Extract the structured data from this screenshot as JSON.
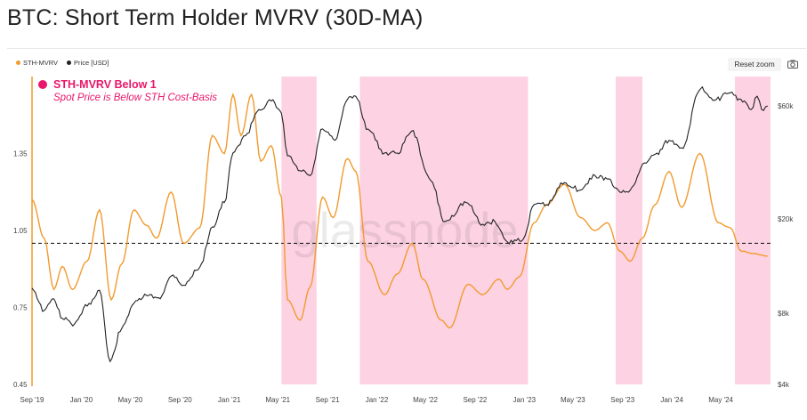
{
  "title": "BTC: Short Term Holder MVRV (30D-MA)",
  "toolbar": {
    "reset_zoom": "Reset zoom",
    "camera_icon": "camera-icon"
  },
  "colors": {
    "mvrv": "#f29a2e",
    "price": "#222222",
    "band": "#fdd3e3",
    "annotation": "#e8176b",
    "axis": "#f29a2e"
  },
  "watermark": "glassnode",
  "annotation": {
    "title": "STH-MVRV Below 1",
    "subtitle": "Spot Price is Below STH Cost-Basis"
  },
  "chart_data": {
    "type": "line",
    "title": "BTC: Short Term Holder MVRV (30D-MA)",
    "x_range": [
      "2019-09-01",
      "2024-09-01"
    ],
    "x_ticks": [
      "Sep '19",
      "Jan '20",
      "May '20",
      "Sep '20",
      "Jan '21",
      "May '21",
      "Sep '21",
      "Jan '22",
      "May '22",
      "Sep '22",
      "Jan '23",
      "May '23",
      "Sep '23",
      "Jan '24",
      "May '24"
    ],
    "y_left": {
      "scale": "linear",
      "range": [
        0.45,
        1.65
      ],
      "ticks": [
        "0.45",
        "0.75",
        "1.05",
        "1.35"
      ]
    },
    "y_right": {
      "scale": "log",
      "range": [
        4000,
        80000
      ],
      "ticks": [
        "$4k",
        "$8k",
        "$20k",
        "$60k"
      ]
    },
    "reference_line": {
      "y": 1.0,
      "style": "dashed",
      "axis": "left"
    },
    "highlight_ranges": [
      [
        "2021-05-10",
        "2021-08-05"
      ],
      [
        "2021-11-20",
        "2023-01-10"
      ],
      [
        "2023-08-15",
        "2023-10-20"
      ],
      [
        "2024-06-05",
        "2024-09-01"
      ]
    ],
    "series": [
      {
        "name": "STH-MVRV",
        "axis": "left",
        "points": [
          [
            "2019-09-01",
            1.17
          ],
          [
            "2019-10-01",
            1.02
          ],
          [
            "2019-10-25",
            0.82
          ],
          [
            "2019-11-15",
            0.91
          ],
          [
            "2019-12-10",
            0.82
          ],
          [
            "2020-01-15",
            0.93
          ],
          [
            "2020-02-15",
            1.13
          ],
          [
            "2020-03-15",
            0.78
          ],
          [
            "2020-04-10",
            0.92
          ],
          [
            "2020-05-10",
            1.13
          ],
          [
            "2020-06-10",
            1.07
          ],
          [
            "2020-07-05",
            1.02
          ],
          [
            "2020-08-10",
            1.2
          ],
          [
            "2020-09-10",
            1.0
          ],
          [
            "2020-10-20",
            1.06
          ],
          [
            "2020-11-20",
            1.42
          ],
          [
            "2020-12-20",
            1.35
          ],
          [
            "2021-01-10",
            1.58
          ],
          [
            "2021-01-30",
            1.42
          ],
          [
            "2021-02-25",
            1.58
          ],
          [
            "2021-03-20",
            1.32
          ],
          [
            "2021-04-15",
            1.38
          ],
          [
            "2021-05-10",
            1.18
          ],
          [
            "2021-05-25",
            0.78
          ],
          [
            "2021-06-25",
            0.7
          ],
          [
            "2021-07-20",
            0.83
          ],
          [
            "2021-08-20",
            1.18
          ],
          [
            "2021-09-15",
            1.1
          ],
          [
            "2021-10-20",
            1.33
          ],
          [
            "2021-11-10",
            1.28
          ],
          [
            "2021-12-10",
            0.93
          ],
          [
            "2022-01-20",
            0.8
          ],
          [
            "2022-02-20",
            0.88
          ],
          [
            "2022-03-30",
            1.0
          ],
          [
            "2022-04-25",
            0.86
          ],
          [
            "2022-06-10",
            0.7
          ],
          [
            "2022-06-30",
            0.67
          ],
          [
            "2022-08-15",
            0.84
          ],
          [
            "2022-09-20",
            0.8
          ],
          [
            "2022-10-30",
            0.86
          ],
          [
            "2022-11-20",
            0.82
          ],
          [
            "2022-12-20",
            0.87
          ],
          [
            "2023-01-25",
            1.08
          ],
          [
            "2023-02-25",
            1.15
          ],
          [
            "2023-04-10",
            1.23
          ],
          [
            "2023-05-20",
            1.1
          ],
          [
            "2023-06-25",
            1.05
          ],
          [
            "2023-07-25",
            1.08
          ],
          [
            "2023-08-25",
            0.97
          ],
          [
            "2023-09-20",
            0.93
          ],
          [
            "2023-10-20",
            1.02
          ],
          [
            "2023-11-20",
            1.15
          ],
          [
            "2023-12-25",
            1.28
          ],
          [
            "2024-01-25",
            1.14
          ],
          [
            "2024-03-10",
            1.35
          ],
          [
            "2024-04-25",
            1.08
          ],
          [
            "2024-05-25",
            1.06
          ],
          [
            "2024-06-20",
            0.97
          ],
          [
            "2024-07-20",
            0.96
          ],
          [
            "2024-08-25",
            0.95
          ]
        ]
      },
      {
        "name": "Price [USD]",
        "axis": "right",
        "points": [
          [
            "2019-09-01",
            10200
          ],
          [
            "2019-10-01",
            8200
          ],
          [
            "2019-10-25",
            9200
          ],
          [
            "2019-11-15",
            7600
          ],
          [
            "2019-12-15",
            7200
          ],
          [
            "2020-01-20",
            8800
          ],
          [
            "2020-02-15",
            10000
          ],
          [
            "2020-03-12",
            5000
          ],
          [
            "2020-04-10",
            6900
          ],
          [
            "2020-05-10",
            8800
          ],
          [
            "2020-06-10",
            9500
          ],
          [
            "2020-07-10",
            9300
          ],
          [
            "2020-08-15",
            11600
          ],
          [
            "2020-09-10",
            10500
          ],
          [
            "2020-10-20",
            12500
          ],
          [
            "2020-11-20",
            18500
          ],
          [
            "2020-12-20",
            23500
          ],
          [
            "2021-01-10",
            38000
          ],
          [
            "2021-02-10",
            45000
          ],
          [
            "2021-03-15",
            58000
          ],
          [
            "2021-04-15",
            63000
          ],
          [
            "2021-05-10",
            56000
          ],
          [
            "2021-05-25",
            37000
          ],
          [
            "2021-06-25",
            32000
          ],
          [
            "2021-07-20",
            30500
          ],
          [
            "2021-08-20",
            48000
          ],
          [
            "2021-09-20",
            43000
          ],
          [
            "2021-10-20",
            64000
          ],
          [
            "2021-11-10",
            66000
          ],
          [
            "2021-12-10",
            48000
          ],
          [
            "2022-01-20",
            38000
          ],
          [
            "2022-02-20",
            38000
          ],
          [
            "2022-03-28",
            47000
          ],
          [
            "2022-05-15",
            29000
          ],
          [
            "2022-06-18",
            19500
          ],
          [
            "2022-08-10",
            23500
          ],
          [
            "2022-09-20",
            19000
          ],
          [
            "2022-10-20",
            19500
          ],
          [
            "2022-11-20",
            16000
          ],
          [
            "2022-12-30",
            16500
          ],
          [
            "2023-01-25",
            23000
          ],
          [
            "2023-02-25",
            23000
          ],
          [
            "2023-04-10",
            28500
          ],
          [
            "2023-05-20",
            26500
          ],
          [
            "2023-06-25",
            30500
          ],
          [
            "2023-07-25",
            29500
          ],
          [
            "2023-08-25",
            26000
          ],
          [
            "2023-09-20",
            26500
          ],
          [
            "2023-10-25",
            34500
          ],
          [
            "2023-11-25",
            38000
          ],
          [
            "2023-12-25",
            43000
          ],
          [
            "2024-01-25",
            40000
          ],
          [
            "2024-03-12",
            71000
          ],
          [
            "2024-04-20",
            64000
          ],
          [
            "2024-05-20",
            68000
          ],
          [
            "2024-06-20",
            64000
          ],
          [
            "2024-07-15",
            58000
          ],
          [
            "2024-07-30",
            66000
          ],
          [
            "2024-08-10",
            58000
          ],
          [
            "2024-08-25",
            60000
          ]
        ]
      }
    ],
    "legend": [
      "STH-MVRV",
      "Price [USD]"
    ],
    "legend_position": "top-left"
  }
}
